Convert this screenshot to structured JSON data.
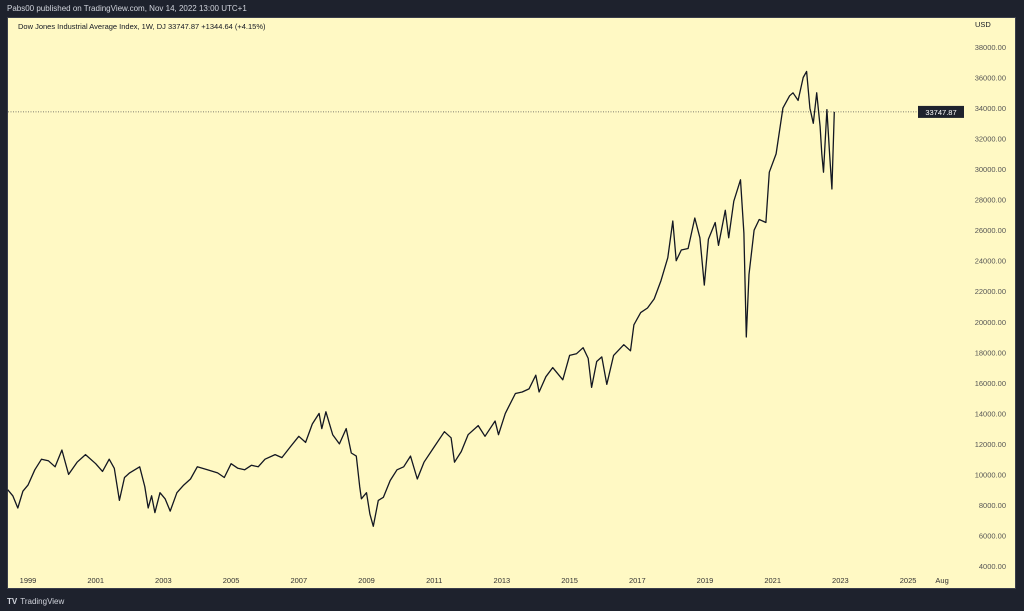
{
  "header": {
    "publisher": "Pabs00 published on TradingView.com, Nov 14, 2022 13:00 UTC+1"
  },
  "legend": {
    "text": "Dow Jones Industrial Average Index, 1W, DJ  33747.87  +1344.64 (+4.15%)"
  },
  "footer": {
    "brand": "TradingView",
    "logo": "TV"
  },
  "chart_data": {
    "type": "line",
    "title": "Dow Jones Industrial Average Index, 1W, DJ",
    "currency_label": "USD",
    "last_price_label": "33747.87",
    "last_price": 33747.87,
    "colors": {
      "line": "#131722",
      "background": "#fff9c4",
      "frame": "#1e222d"
    },
    "ylim": [
      3500,
      39000
    ],
    "xlim": [
      1998.4,
      2025.9
    ],
    "y_ticks": [
      {
        "value": 38000,
        "label": "38000.00"
      },
      {
        "value": 36000,
        "label": "36000.00"
      },
      {
        "value": 34000,
        "label": "34000.00"
      },
      {
        "value": 32000,
        "label": "32000.00"
      },
      {
        "value": 30000,
        "label": "30000.00"
      },
      {
        "value": 28000,
        "label": "28000.00"
      },
      {
        "value": 26000,
        "label": "26000.00"
      },
      {
        "value": 24000,
        "label": "24000.00"
      },
      {
        "value": 22000,
        "label": "22000.00"
      },
      {
        "value": 20000,
        "label": "20000.00"
      },
      {
        "value": 18000,
        "label": "18000.00"
      },
      {
        "value": 16000,
        "label": "16000.00"
      },
      {
        "value": 14000,
        "label": "14000.00"
      },
      {
        "value": 12000,
        "label": "12000.00"
      },
      {
        "value": 10000,
        "label": "10000.00"
      },
      {
        "value": 8000,
        "label": "8000.00"
      },
      {
        "value": 6000,
        "label": "6000.00"
      },
      {
        "value": 4000,
        "label": "4000.00"
      }
    ],
    "x_ticks": [
      {
        "value": 1999,
        "label": "1999"
      },
      {
        "value": 2001,
        "label": "2001"
      },
      {
        "value": 2003,
        "label": "2003"
      },
      {
        "value": 2005,
        "label": "2005"
      },
      {
        "value": 2007,
        "label": "2007"
      },
      {
        "value": 2009,
        "label": "2009"
      },
      {
        "value": 2011,
        "label": "2011"
      },
      {
        "value": 2013,
        "label": "2013"
      },
      {
        "value": 2015,
        "label": "2015"
      },
      {
        "value": 2017,
        "label": "2017"
      },
      {
        "value": 2019,
        "label": "2019"
      },
      {
        "value": 2021,
        "label": "2021"
      },
      {
        "value": 2023,
        "label": "2023"
      },
      {
        "value": 2025,
        "label": "2025"
      },
      {
        "value": 2025.6,
        "label": "Aug"
      }
    ],
    "x": [
      1998.4,
      1998.55,
      1998.7,
      1998.85,
      1999.0,
      1999.2,
      1999.4,
      1999.6,
      1999.8,
      2000.0,
      2000.2,
      2000.45,
      2000.7,
      2001.0,
      2001.2,
      2001.4,
      2001.55,
      2001.7,
      2001.85,
      2002.0,
      2002.3,
      2002.45,
      2002.55,
      2002.65,
      2002.75,
      2002.9,
      2003.05,
      2003.2,
      2003.4,
      2003.6,
      2003.8,
      2004.0,
      2004.3,
      2004.6,
      2004.8,
      2005.0,
      2005.2,
      2005.4,
      2005.6,
      2005.8,
      2006.0,
      2006.3,
      2006.5,
      2006.75,
      2007.0,
      2007.2,
      2007.4,
      2007.6,
      2007.68,
      2007.8,
      2008.0,
      2008.2,
      2008.4,
      2008.55,
      2008.7,
      2008.8,
      2008.85,
      2009.0,
      2009.1,
      2009.2,
      2009.35,
      2009.5,
      2009.7,
      2009.9,
      2010.1,
      2010.3,
      2010.5,
      2010.7,
      2011.0,
      2011.3,
      2011.5,
      2011.6,
      2011.8,
      2012.0,
      2012.3,
      2012.5,
      2012.8,
      2012.9,
      2013.1,
      2013.4,
      2013.6,
      2013.8,
      2014.0,
      2014.1,
      2014.3,
      2014.5,
      2014.8,
      2015.0,
      2015.2,
      2015.4,
      2015.55,
      2015.65,
      2015.8,
      2015.95,
      2016.1,
      2016.3,
      2016.6,
      2016.8,
      2016.9,
      2017.1,
      2017.3,
      2017.5,
      2017.7,
      2017.9,
      2018.05,
      2018.15,
      2018.3,
      2018.5,
      2018.7,
      2018.85,
      2018.98,
      2019.1,
      2019.3,
      2019.4,
      2019.6,
      2019.7,
      2019.85,
      2020.05,
      2020.15,
      2020.22,
      2020.3,
      2020.45,
      2020.6,
      2020.8,
      2020.9,
      2021.1,
      2021.3,
      2021.5,
      2021.6,
      2021.75,
      2021.9,
      2022.0,
      2022.1,
      2022.2,
      2022.3,
      2022.4,
      2022.45,
      2022.5,
      2022.6,
      2022.68,
      2022.75,
      2022.82
    ],
    "values": [
      9000,
      8600,
      7800,
      8900,
      9300,
      10300,
      11000,
      10900,
      10500,
      11600,
      10000,
      10800,
      11300,
      10700,
      10200,
      11000,
      10400,
      8300,
      9800,
      10100,
      10500,
      9200,
      7800,
      8600,
      7500,
      8800,
      8400,
      7600,
      8800,
      9300,
      9700,
      10500,
      10300,
      10100,
      9800,
      10700,
      10400,
      10300,
      10600,
      10500,
      11000,
      11300,
      11100,
      11800,
      12500,
      12100,
      13300,
      14000,
      13000,
      14100,
      12600,
      12000,
      13000,
      11400,
      11200,
      9200,
      8400,
      8800,
      7400,
      6600,
      8300,
      8500,
      9600,
      10300,
      10500,
      11200,
      9700,
      10800,
      11800,
      12800,
      12400,
      10800,
      11500,
      12600,
      13200,
      12500,
      13500,
      12600,
      14000,
      15300,
      15400,
      15600,
      16500,
      15400,
      16400,
      17000,
      16200,
      17800,
      17900,
      18300,
      17600,
      15700,
      17400,
      17700,
      15900,
      17800,
      18500,
      18100,
      19800,
      20600,
      20900,
      21500,
      22700,
      24200,
      26600,
      24000,
      24700,
      24800,
      26800,
      25500,
      22400,
      25400,
      26500,
      25000,
      27300,
      25500,
      27900,
      29300,
      25800,
      19000,
      23100,
      26000,
      26700,
      26500,
      29800,
      31000,
      34000,
      34800,
      35000,
      34500,
      36000,
      36400,
      34000,
      33000,
      35000,
      32800,
      31000,
      29800,
      33900,
      31000,
      28700,
      33750
    ]
  }
}
